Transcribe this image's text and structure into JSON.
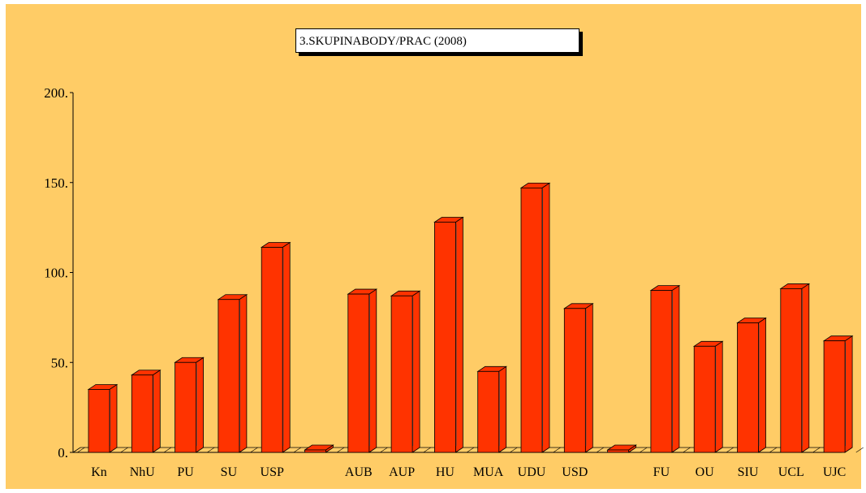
{
  "chart_data": {
    "type": "bar",
    "title": "3.SKUPINABODY/PRAC (2008)",
    "xlabel": "",
    "ylabel": "",
    "ylim": [
      0,
      200
    ],
    "yticks": [
      {
        "value": 0,
        "label": "0."
      },
      {
        "value": 50,
        "label": "50."
      },
      {
        "value": 100,
        "label": "100."
      },
      {
        "value": 150,
        "label": "150."
      },
      {
        "value": 200,
        "label": "200."
      }
    ],
    "categories": [
      "Kn",
      "NhU",
      "PU",
      "SU",
      "USP",
      "",
      "AUB",
      "AUP",
      "HU",
      "MUA",
      "UDU",
      "USD",
      "",
      "FU",
      "OU",
      "SIU",
      "UCL",
      "UJC"
    ],
    "values": [
      35,
      43,
      50,
      85,
      114,
      0,
      88,
      87,
      128,
      45,
      147,
      80,
      0,
      90,
      59,
      72,
      91,
      62
    ],
    "grid": false,
    "legend": "none",
    "colors": {
      "background": "#ffcc66",
      "bar_front": "#ff3300",
      "bar_side": "#555555",
      "bar_outline": "#000000",
      "floor": "#ffcc66"
    }
  }
}
